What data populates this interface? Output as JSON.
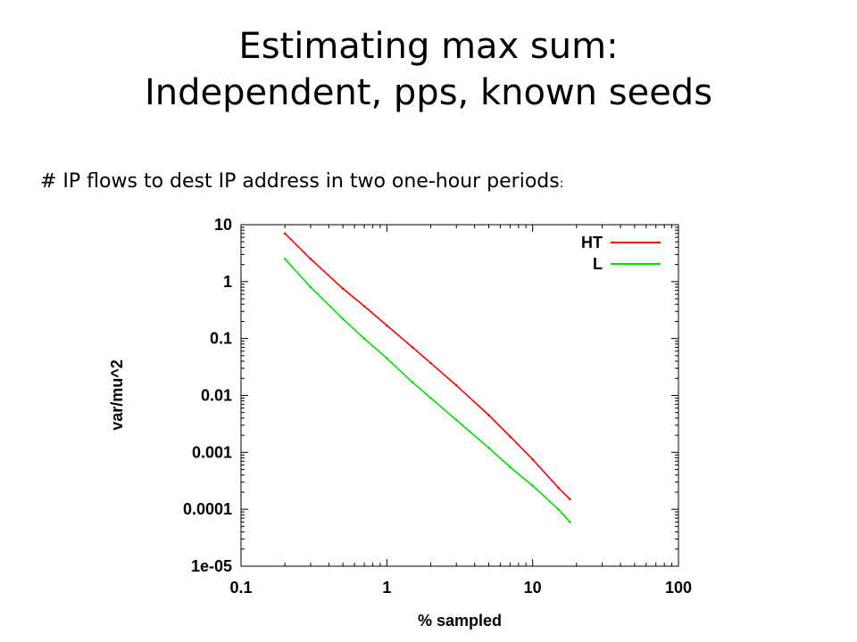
{
  "slide": {
    "title_line1": "Estimating max sum:",
    "title_line2": "Independent, pps, known seeds",
    "subtitle": "# IP flows to dest IP address in two one-hour periods",
    "subtitle_colon": ":"
  },
  "chart_data": {
    "type": "line",
    "title": "",
    "xlabel": "% sampled",
    "ylabel": "var/mu^2",
    "xscale": "log",
    "yscale": "log",
    "xlim": [
      0.1,
      100
    ],
    "ylim": [
      1e-05,
      10
    ],
    "xticks": [
      0.1,
      1,
      10,
      100
    ],
    "xtick_labels": [
      "0.1",
      "1",
      "10",
      "100"
    ],
    "yticks": [
      1e-05,
      0.0001,
      0.001,
      0.01,
      0.1,
      1,
      10
    ],
    "ytick_labels": [
      "1e-05",
      "0.0001",
      "0.001",
      "0.01",
      "0.1",
      "1",
      "10"
    ],
    "grid": false,
    "legend_position": "top-right",
    "series": [
      {
        "name": "HT",
        "color": "#ff0000",
        "x": [
          0.2,
          0.3,
          0.5,
          0.7,
          1,
          1.5,
          2,
          3,
          5,
          7,
          10,
          15,
          18
        ],
        "y": [
          7,
          2.5,
          0.75,
          0.37,
          0.17,
          0.07,
          0.037,
          0.015,
          0.0045,
          0.0019,
          0.00075,
          0.00024,
          0.00015
        ]
      },
      {
        "name": "L",
        "color": "#00dd00",
        "x": [
          0.2,
          0.3,
          0.5,
          0.7,
          1,
          1.5,
          2,
          3,
          5,
          7,
          10,
          15,
          18
        ],
        "y": [
          2.5,
          0.8,
          0.22,
          0.1,
          0.045,
          0.017,
          0.009,
          0.0037,
          0.0012,
          0.00055,
          0.00026,
          0.0001,
          6e-05
        ]
      }
    ]
  }
}
